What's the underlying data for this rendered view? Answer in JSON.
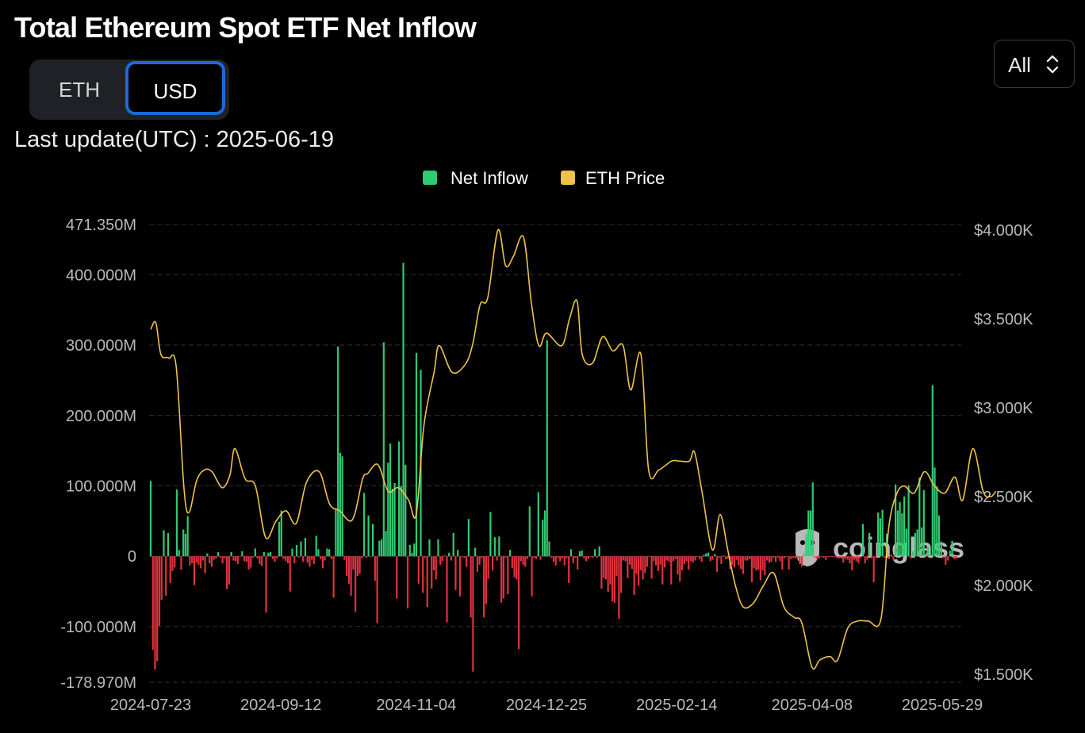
{
  "header": {
    "title": "Total Ethereum Spot ETF Net Inflow",
    "unit_tabs": [
      "ETH",
      "USD"
    ],
    "active_tab": "USD",
    "last_update": "Last update(UTC) : 2025-06-19",
    "range_select": "All"
  },
  "watermark": "coinglass",
  "colors": {
    "inflow_positive": "#2ecc71",
    "inflow_negative": "#e0323e",
    "price_line": "#f0c24b",
    "grid": "#2f3136",
    "toggle_active_border": "#1c6ad6"
  },
  "icons": [
    "chevron-updown-icon",
    "coinglass-logo-icon"
  ],
  "chart_data": {
    "type": "bar",
    "title": "Total Ethereum Spot ETF Net Inflow",
    "legend_position": "top-center",
    "grid": true,
    "x_tick_labels": [
      "2024-07-23",
      "2024-09-12",
      "2024-11-04",
      "2024-12-25",
      "2025-02-14",
      "2025-04-08",
      "2025-05-29"
    ],
    "y_left": {
      "unit": "USD",
      "ylim": [
        -178970000,
        471350000
      ],
      "ticks": [
        471350000,
        400000000,
        300000000,
        200000000,
        100000000,
        0,
        -100000000,
        -178970000
      ],
      "tick_labels": [
        "471.350M",
        "400.000M",
        "300.000M",
        "200.000M",
        "100.000M",
        "0",
        "-100.000M",
        "-178.970M"
      ]
    },
    "y_right": {
      "unit": "USD",
      "ylim": [
        1500,
        4000
      ],
      "ticks": [
        4000,
        3500,
        3000,
        2500,
        2000,
        1500
      ],
      "tick_labels": [
        "$4.000K",
        "$3.500K",
        "$3.000K",
        "$2.500K",
        "$2.000K",
        "$1.500K"
      ]
    },
    "series": [
      {
        "name": "Net Inflow",
        "type": "bar",
        "axis": "left",
        "start_date": "2024-07-23",
        "values_musd": [
          107,
          -133,
          -161,
          -149,
          -99,
          -62,
          37,
          -56,
          33,
          -38,
          -21,
          -16,
          95,
          9,
          -19,
          38,
          32,
          57,
          -13,
          -10,
          -41,
          -9,
          -12,
          -17,
          -6,
          -24,
          4,
          -10,
          -15,
          -5,
          -3,
          6,
          -2,
          -10,
          -3,
          -47,
          -40,
          6,
          -6,
          -7,
          -11,
          -1,
          7,
          -7,
          -8,
          -19,
          -16,
          -2,
          11,
          -3,
          -11,
          -14,
          6,
          -80,
          5,
          6,
          -4,
          -8,
          -3,
          49,
          65,
          -4,
          -7,
          -10,
          -50,
          11,
          -10,
          16,
          -2,
          21,
          -8,
          26,
          -9,
          -15,
          -5,
          -11,
          29,
          10,
          -4,
          -17,
          -6,
          11,
          10,
          -4,
          -59,
          68,
          298,
          147,
          142,
          -5,
          -28,
          -39,
          -56,
          -19,
          -79,
          -28,
          -25,
          -3,
          90,
          -2,
          58,
          -1,
          46,
          -35,
          -95,
          22,
          24,
          304,
          36,
          133,
          160,
          96,
          104,
          -60,
          163,
          100,
          417,
          130,
          -74,
          16,
          5,
          18,
          289,
          -39,
          265,
          -52,
          -2,
          -72,
          24,
          -46,
          -20,
          -33,
          24,
          -12,
          -7,
          1,
          -94,
          5,
          -6,
          33,
          -48,
          9,
          -57,
          -1,
          -2,
          -15,
          53,
          -87,
          -164,
          12,
          -22,
          -12,
          -3,
          -87,
          -68,
          -32,
          63,
          -20,
          27,
          -6,
          28,
          -66,
          -60,
          -2,
          -54,
          9,
          -17,
          -30,
          -33,
          -132,
          -7,
          -12,
          -15,
          -4,
          71,
          -57,
          -2,
          -4,
          91,
          -5,
          52,
          65,
          307,
          21,
          -2,
          -8,
          -13,
          -3,
          -7,
          -3,
          -13,
          -3,
          -38,
          10,
          -10,
          -2,
          -19,
          7,
          8,
          -3,
          -7,
          -4,
          -1,
          -2,
          10,
          -2,
          14,
          -46,
          -31,
          -33,
          -51,
          -40,
          -64,
          -66,
          -28,
          -89,
          -52,
          -6,
          -7,
          -31,
          -12,
          -18,
          -55,
          -25,
          -42,
          -20,
          -33,
          -24,
          -15,
          -1,
          -32,
          -7,
          -13,
          -21,
          -12,
          -40,
          -16,
          -6,
          -8,
          -40,
          -7,
          -4,
          -26,
          -36,
          -20,
          -11,
          -7,
          -19,
          -7,
          -9,
          -6,
          -1,
          -4,
          -8,
          2,
          4,
          5,
          -7,
          -5,
          3,
          -22,
          -2,
          -11,
          1,
          -4,
          -4,
          -18,
          -12,
          -16,
          -5,
          -13,
          -18,
          -25,
          -6,
          -6,
          -4,
          -37,
          -17,
          -20,
          -19,
          -34,
          -20,
          -27,
          -6,
          -9,
          -8,
          -2,
          -8,
          -2,
          -7,
          -19,
          -3,
          0,
          -19,
          -4,
          -2,
          -3,
          -3,
          -11,
          -15,
          4,
          31,
          65,
          65,
          105,
          -2,
          -4,
          -3,
          -1,
          -2,
          -5,
          -1,
          -1,
          -1,
          -1,
          -2,
          -3,
          -2,
          -9,
          -4,
          -5,
          -10,
          -20,
          -5,
          -7,
          -10,
          -2,
          46,
          -10,
          -5,
          33,
          -3,
          -37,
          -2,
          62,
          54,
          66,
          -2,
          32,
          -4,
          2,
          -5,
          102,
          65,
          77,
          61,
          85,
          39,
          101,
          -3,
          7,
          33,
          38,
          112,
          41,
          94,
          -1,
          14,
          2,
          243,
          126,
          99,
          58,
          21,
          -2,
          -12,
          -6,
          8,
          22,
          -4,
          -3
        ]
      },
      {
        "name": "ETH Price",
        "type": "line",
        "axis": "right",
        "points": [
          [
            "2024-07-23",
            3440
          ],
          [
            "2024-07-25",
            3480
          ],
          [
            "2024-07-27",
            3300
          ],
          [
            "2024-07-30",
            3280
          ],
          [
            "2024-08-02",
            3230
          ],
          [
            "2024-08-05",
            2550
          ],
          [
            "2024-08-07",
            2410
          ],
          [
            "2024-08-10",
            2590
          ],
          [
            "2024-08-13",
            2650
          ],
          [
            "2024-08-16",
            2640
          ],
          [
            "2024-08-20",
            2550
          ],
          [
            "2024-08-23",
            2620
          ],
          [
            "2024-08-25",
            2770
          ],
          [
            "2024-08-29",
            2600
          ],
          [
            "2024-09-02",
            2560
          ],
          [
            "2024-09-06",
            2270
          ],
          [
            "2024-09-10",
            2360
          ],
          [
            "2024-09-14",
            2420
          ],
          [
            "2024-09-18",
            2350
          ],
          [
            "2024-09-22",
            2580
          ],
          [
            "2024-09-27",
            2640
          ],
          [
            "2024-10-01",
            2460
          ],
          [
            "2024-10-05",
            2420
          ],
          [
            "2024-10-10",
            2370
          ],
          [
            "2024-10-14",
            2600
          ],
          [
            "2024-10-16",
            2630
          ],
          [
            "2024-10-20",
            2680
          ],
          [
            "2024-10-24",
            2530
          ],
          [
            "2024-10-28",
            2550
          ],
          [
            "2024-11-01",
            2480
          ],
          [
            "2024-11-04",
            2400
          ],
          [
            "2024-11-07",
            2900
          ],
          [
            "2024-11-11",
            3200
          ],
          [
            "2024-11-13",
            3350
          ],
          [
            "2024-11-18",
            3200
          ],
          [
            "2024-11-23",
            3240
          ],
          [
            "2024-11-26",
            3350
          ],
          [
            "2024-11-29",
            3580
          ],
          [
            "2024-12-02",
            3620
          ],
          [
            "2024-12-06",
            4000
          ],
          [
            "2024-12-09",
            3800
          ],
          [
            "2024-12-12",
            3850
          ],
          [
            "2024-12-16",
            3960
          ],
          [
            "2024-12-19",
            3600
          ],
          [
            "2024-12-22",
            3350
          ],
          [
            "2024-12-25",
            3420
          ],
          [
            "2024-12-31",
            3350
          ],
          [
            "2025-01-03",
            3500
          ],
          [
            "2025-01-06",
            3600
          ],
          [
            "2025-01-08",
            3300
          ],
          [
            "2025-01-12",
            3250
          ],
          [
            "2025-01-16",
            3400
          ],
          [
            "2025-01-20",
            3320
          ],
          [
            "2025-01-24",
            3350
          ],
          [
            "2025-01-27",
            3100
          ],
          [
            "2025-01-31",
            3300
          ],
          [
            "2025-02-03",
            2650
          ],
          [
            "2025-02-07",
            2650
          ],
          [
            "2025-02-12",
            2700
          ],
          [
            "2025-02-15",
            2700
          ],
          [
            "2025-02-19",
            2700
          ],
          [
            "2025-02-21",
            2750
          ],
          [
            "2025-02-24",
            2520
          ],
          [
            "2025-02-28",
            2200
          ],
          [
            "2025-03-03",
            2400
          ],
          [
            "2025-03-06",
            2200
          ],
          [
            "2025-03-09",
            2000
          ],
          [
            "2025-03-12",
            1880
          ],
          [
            "2025-03-16",
            1900
          ],
          [
            "2025-03-20",
            2000
          ],
          [
            "2025-03-24",
            2070
          ],
          [
            "2025-03-28",
            1880
          ],
          [
            "2025-04-01",
            1820
          ],
          [
            "2025-04-04",
            1790
          ],
          [
            "2025-04-08",
            1540
          ],
          [
            "2025-04-11",
            1580
          ],
          [
            "2025-04-15",
            1600
          ],
          [
            "2025-04-18",
            1580
          ],
          [
            "2025-04-22",
            1760
          ],
          [
            "2025-04-26",
            1800
          ],
          [
            "2025-04-30",
            1800
          ],
          [
            "2025-05-05",
            1810
          ],
          [
            "2025-05-08",
            2320
          ],
          [
            "2025-05-11",
            2510
          ],
          [
            "2025-05-14",
            2560
          ],
          [
            "2025-05-18",
            2520
          ],
          [
            "2025-05-22",
            2640
          ],
          [
            "2025-05-26",
            2560
          ],
          [
            "2025-05-30",
            2520
          ],
          [
            "2025-06-03",
            2610
          ],
          [
            "2025-06-06",
            2480
          ],
          [
            "2025-06-10",
            2770
          ],
          [
            "2025-06-14",
            2530
          ],
          [
            "2025-06-17",
            2500
          ],
          [
            "2025-06-19",
            2530
          ]
        ]
      }
    ]
  }
}
